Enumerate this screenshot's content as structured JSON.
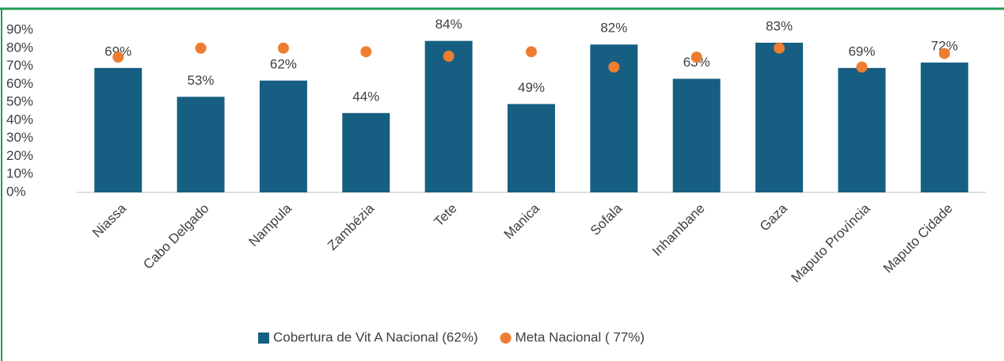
{
  "chart_data": {
    "type": "bar",
    "categories": [
      "Niassa",
      "Cabo Delgado",
      "Nampula",
      "Zambézia",
      "Tete",
      "Manica",
      "Sofala",
      "Inhambane",
      "Gaza",
      "Maputo Província",
      "Maputo Cidade"
    ],
    "series": [
      {
        "name": "Cobertura de Vit A Nacional (62%)",
        "type": "bar",
        "color": "#175f82",
        "values": [
          69,
          53,
          62,
          44,
          84,
          49,
          82,
          63,
          83,
          69,
          72
        ],
        "value_labels": [
          "69%",
          "53%",
          "62%",
          "44%",
          "84%",
          "49%",
          "82%",
          "63%",
          "83%",
          "69%",
          "72%"
        ]
      },
      {
        "name": "Meta Nacional ( 77%)",
        "type": "scatter",
        "color": "#ed7d31",
        "values": [
          75,
          80,
          80,
          78,
          75.5,
          78,
          69.5,
          75,
          80,
          69.5,
          77
        ]
      }
    ],
    "ylim": [
      0,
      90
    ],
    "yticks": [
      {
        "value": 0,
        "label": "0%"
      },
      {
        "value": 10,
        "label": "10%"
      },
      {
        "value": 20,
        "label": "20%"
      },
      {
        "value": 30,
        "label": "30%"
      },
      {
        "value": 40,
        "label": "40%"
      },
      {
        "value": 50,
        "label": "50%"
      },
      {
        "value": 60,
        "label": "60%"
      },
      {
        "value": 70,
        "label": "70%"
      },
      {
        "value": 80,
        "label": "80%"
      },
      {
        "value": 90,
        "label": "90%"
      }
    ],
    "grid": false,
    "legend": "bottom"
  }
}
